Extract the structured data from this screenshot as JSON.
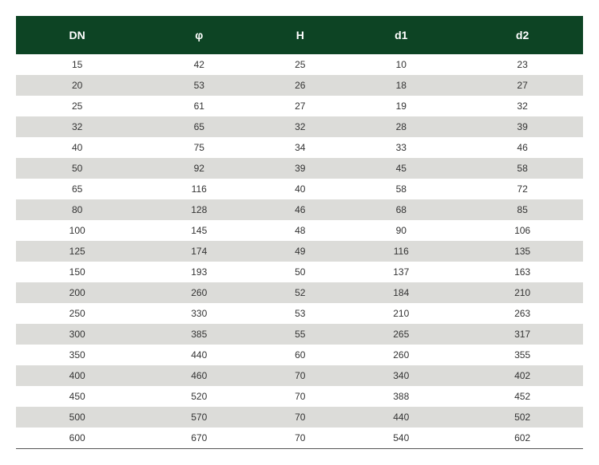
{
  "table": {
    "type": "table",
    "header_bg": "#0d4424",
    "header_color": "#ffffff",
    "row_odd_bg": "#ffffff",
    "row_even_bg": "#dcdcd9",
    "text_color": "#333333",
    "header_fontsize": 14,
    "cell_fontsize": 12,
    "columns": [
      "DN",
      "φ",
      "H",
      "d1",
      "d2"
    ],
    "rows": [
      [
        "15",
        "42",
        "25",
        "10",
        "23"
      ],
      [
        "20",
        "53",
        "26",
        "18",
        "27"
      ],
      [
        "25",
        "61",
        "27",
        "19",
        "32"
      ],
      [
        "32",
        "65",
        "32",
        "28",
        "39"
      ],
      [
        "40",
        "75",
        "34",
        "33",
        "46"
      ],
      [
        "50",
        "92",
        "39",
        "45",
        "58"
      ],
      [
        "65",
        "116",
        "40",
        "58",
        "72"
      ],
      [
        "80",
        "128",
        "46",
        "68",
        "85"
      ],
      [
        "100",
        "145",
        "48",
        "90",
        "106"
      ],
      [
        "125",
        "174",
        "49",
        "116",
        "135"
      ],
      [
        "150",
        "193",
        "50",
        "137",
        "163"
      ],
      [
        "200",
        "260",
        "52",
        "184",
        "210"
      ],
      [
        "250",
        "330",
        "53",
        "210",
        "263"
      ],
      [
        "300",
        "385",
        "55",
        "265",
        "317"
      ],
      [
        "350",
        "440",
        "60",
        "260",
        "355"
      ],
      [
        "400",
        "460",
        "70",
        "340",
        "402"
      ],
      [
        "450",
        "520",
        "70",
        "388",
        "452"
      ],
      [
        "500",
        "570",
        "70",
        "440",
        "502"
      ],
      [
        "600",
        "670",
        "70",
        "540",
        "602"
      ]
    ]
  }
}
